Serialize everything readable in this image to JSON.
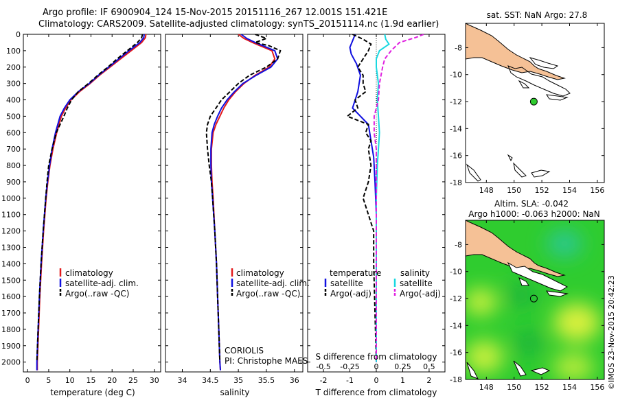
{
  "title": {
    "line1": "Argo profile: IF 6900904_124 15-Nov-2015 20151116_267 12.001S 151.421E",
    "line2": "Climatology: CARS2009. Satellite-adjusted climatology: synTS_20151114.nc (1.9d earlier)"
  },
  "credit": "CORIOLIS",
  "pi": "PI: Christophe MAES",
  "watermark": "©IMOS 23-Nov-2015 20:42:23",
  "colors": {
    "climatology": "#e31a1c",
    "satellite": "#1010e0",
    "argo": "#000000",
    "sat_salinity": "#18d8e0",
    "argo_salinity": "#e020e0",
    "land": "#f5c196",
    "ocean_green": "#2fcc2f"
  },
  "chart_data": [
    {
      "id": "temperature",
      "type": "line",
      "xlabel": "temperature (deg C)",
      "ylabel": "",
      "xlim": [
        -1,
        31.5
      ],
      "ylim": [
        2060,
        0
      ],
      "xticks": [
        0,
        5,
        10,
        15,
        20,
        25,
        30
      ],
      "yticks": [
        0,
        100,
        200,
        300,
        400,
        500,
        600,
        700,
        800,
        900,
        1000,
        1100,
        1200,
        1300,
        1400,
        1500,
        1600,
        1700,
        1800,
        1900,
        2000
      ],
      "legend": [
        "climatology",
        "satellite-adj. clim.",
        "Argo(..raw -QC)"
      ],
      "series": [
        {
          "name": "climatology",
          "depth": [
            0,
            20,
            50,
            100,
            150,
            200,
            250,
            300,
            350,
            400,
            450,
            500,
            600,
            700,
            800,
            900,
            1000,
            1200,
            1400,
            1600,
            1800,
            2000,
            2050
          ],
          "values": [
            28.0,
            27.9,
            27.0,
            24.5,
            22.0,
            19.5,
            17.0,
            14.8,
            12.3,
            10.3,
            9.0,
            8.0,
            6.9,
            6.0,
            5.3,
            4.8,
            4.4,
            3.8,
            3.3,
            2.9,
            2.6,
            2.3,
            2.3
          ]
        },
        {
          "name": "satellite-adj. clim.",
          "depth": [
            0,
            20,
            50,
            100,
            150,
            200,
            250,
            300,
            350,
            400,
            450,
            500,
            600,
            700,
            800,
            900,
            1000,
            1200,
            1400,
            1600,
            1800,
            2000,
            2050
          ],
          "values": [
            27.6,
            27.5,
            26.6,
            24.0,
            21.6,
            19.2,
            16.8,
            14.6,
            12.0,
            10.0,
            8.7,
            7.7,
            6.6,
            5.8,
            5.2,
            4.7,
            4.3,
            3.7,
            3.2,
            2.8,
            2.5,
            2.2,
            2.2
          ]
        },
        {
          "name": "Argo(..raw -QC)",
          "depth": [
            0,
            20,
            50,
            100,
            150,
            200,
            250,
            300,
            350,
            400,
            450,
            500,
            550,
            600,
            700,
            800,
            900,
            1000,
            1200,
            1400,
            1600,
            1800,
            2000
          ],
          "values": [
            27.2,
            27.0,
            26.0,
            23.6,
            21.2,
            19.0,
            16.6,
            14.4,
            12.0,
            10.4,
            9.4,
            8.6,
            7.7,
            6.8,
            5.8,
            5.0,
            4.6,
            4.3,
            3.7,
            3.2,
            2.8,
            2.5,
            2.2
          ]
        }
      ]
    },
    {
      "id": "salinity",
      "type": "line",
      "xlabel": "salinity",
      "xlim": [
        33.7,
        36.15
      ],
      "ylim": [
        2060,
        0
      ],
      "xticks": [
        34,
        34.5,
        35,
        35.5,
        36
      ],
      "xticklabels": [
        "34",
        "34.5",
        "35",
        "35.5",
        "36"
      ],
      "legend": [
        "climatology",
        "satellite-adj. clim.",
        "Argo(..raw -QC)"
      ],
      "series": [
        {
          "name": "climatology",
          "depth": [
            0,
            25,
            50,
            100,
            150,
            200,
            250,
            300,
            350,
            400,
            450,
            500,
            550,
            600,
            700,
            800,
            900,
            1000,
            1200,
            1400,
            1600,
            1800,
            2000,
            2050
          ],
          "values": [
            35.0,
            35.1,
            35.25,
            35.6,
            35.65,
            35.55,
            35.3,
            35.1,
            34.95,
            34.83,
            34.74,
            34.67,
            34.6,
            34.55,
            34.52,
            34.52,
            34.53,
            34.55,
            34.58,
            34.61,
            34.63,
            34.65,
            34.67,
            34.68
          ]
        },
        {
          "name": "satellite-adj. clim.",
          "depth": [
            0,
            25,
            50,
            100,
            150,
            200,
            250,
            300,
            350,
            400,
            450,
            500,
            550,
            600,
            700,
            800,
            900,
            1000,
            1200,
            1400,
            1600,
            1800,
            2000,
            2050
          ],
          "values": [
            35.05,
            35.15,
            35.3,
            35.65,
            35.7,
            35.58,
            35.32,
            35.08,
            34.93,
            34.8,
            34.7,
            34.63,
            34.57,
            34.53,
            34.51,
            34.51,
            34.52,
            34.54,
            34.58,
            34.61,
            34.63,
            34.65,
            34.67,
            34.68
          ]
        },
        {
          "name": "Argo(..raw -QC)",
          "depth": [
            0,
            25,
            50,
            70,
            100,
            150,
            200,
            250,
            300,
            350,
            400,
            450,
            500,
            550,
            600,
            700,
            800,
            900,
            1000,
            1200,
            1400,
            1600,
            1800,
            2000
          ],
          "values": [
            35.3,
            35.5,
            35.3,
            35.55,
            35.75,
            35.7,
            35.5,
            35.2,
            35.0,
            34.85,
            34.7,
            34.6,
            34.5,
            34.45,
            34.43,
            34.45,
            34.48,
            34.52,
            34.54,
            34.58,
            34.61,
            34.63,
            34.65,
            34.67
          ]
        }
      ]
    },
    {
      "id": "differences",
      "type": "line",
      "xlabel": "T difference from climatology",
      "top_axis_label": "S difference from climatology",
      "xlim": [
        -2.6,
        2.6
      ],
      "ylim": [
        2060,
        0
      ],
      "xticks": [
        -2,
        -1,
        0,
        1,
        2
      ],
      "xticklabels": [
        "-2",
        "-1",
        "0",
        "1",
        "2"
      ],
      "s_xlim": [
        -0.65,
        0.65
      ],
      "s_xticks": [
        -0.5,
        -0.25,
        0,
        0.25,
        0.5
      ],
      "s_xticklabels": [
        "-0.5",
        "-0.25",
        "0",
        "0.25",
        "0.5"
      ],
      "legend_headers": [
        "temperature",
        "salinity"
      ],
      "legend": [
        "satellite",
        "Argo(-adj)",
        "satellite",
        "Argo(-adj)"
      ],
      "series": [
        {
          "name": "temperature satellite",
          "quantity": "T",
          "depth": [
            0,
            40,
            80,
            120,
            180,
            250,
            350,
            450,
            550,
            650,
            750,
            900,
            1100,
            1400,
            1700,
            2000
          ],
          "values": [
            -0.8,
            -0.9,
            -1.0,
            -0.95,
            -0.75,
            -0.6,
            -0.7,
            -0.9,
            -0.3,
            -0.2,
            -0.1,
            -0.05,
            0.0,
            0.0,
            0.0,
            0.0
          ]
        },
        {
          "name": "temperature Argo(-adj)",
          "quantity": "T",
          "depth": [
            0,
            30,
            60,
            100,
            150,
            200,
            250,
            300,
            350,
            400,
            450,
            500,
            550,
            600,
            650,
            700,
            800,
            900,
            1000,
            1200,
            1400,
            1700,
            2000
          ],
          "values": [
            -0.9,
            -0.5,
            -0.2,
            -0.3,
            -0.5,
            -0.7,
            -0.5,
            -0.5,
            -0.4,
            -0.8,
            -0.7,
            -1.1,
            -0.3,
            -0.4,
            -0.2,
            -0.3,
            -0.2,
            -0.3,
            -0.5,
            -0.1,
            -0.1,
            -0.05,
            0.0
          ]
        },
        {
          "name": "salinity satellite",
          "quantity": "S",
          "depth": [
            0,
            30,
            60,
            100,
            150,
            200,
            300,
            400,
            500,
            600,
            700,
            800,
            1000,
            1500,
            2000
          ],
          "values": [
            0.08,
            0.09,
            0.12,
            0.03,
            0.0,
            0.0,
            0.02,
            0.01,
            0.02,
            0.03,
            0.02,
            0.01,
            0.0,
            0.0,
            0.0
          ]
        },
        {
          "name": "salinity Argo(-adj)",
          "quantity": "S",
          "depth": [
            0,
            20,
            50,
            100,
            150,
            200,
            300,
            400,
            500,
            600,
            700,
            800,
            1000,
            1200,
            1500,
            2000
          ],
          "values": [
            0.45,
            0.37,
            0.22,
            0.14,
            0.08,
            0.06,
            0.03,
            0.02,
            -0.02,
            -0.02,
            0.0,
            0.0,
            0.0,
            0.0,
            0.0,
            0.0
          ]
        }
      ]
    },
    {
      "id": "sst_map",
      "type": "map",
      "title": "sat. SST: NaN Argo: 27.8",
      "xlim": [
        146.5,
        156.5
      ],
      "ylim": [
        -18,
        -6.2
      ],
      "xticks": [
        148,
        150,
        152,
        154,
        156
      ],
      "yticks": [
        -8,
        -10,
        -12,
        -14,
        -16,
        -18
      ],
      "marker": {
        "lon": 151.421,
        "lat": -12.001,
        "style": "filled green circle"
      }
    },
    {
      "id": "sla_map",
      "type": "map",
      "title_line1": "Altim. SLA: -0.042",
      "title_line2": "Argo h1000: -0.063 h2000: NaN",
      "xlim": [
        146.5,
        156.5
      ],
      "ylim": [
        -18,
        -6.2
      ],
      "xticks": [
        148,
        150,
        152,
        154,
        156
      ],
      "yticks": [
        -8,
        -10,
        -12,
        -14,
        -16,
        -18
      ],
      "marker": {
        "lon": 151.421,
        "lat": -12.001,
        "style": "open black circle"
      }
    }
  ]
}
